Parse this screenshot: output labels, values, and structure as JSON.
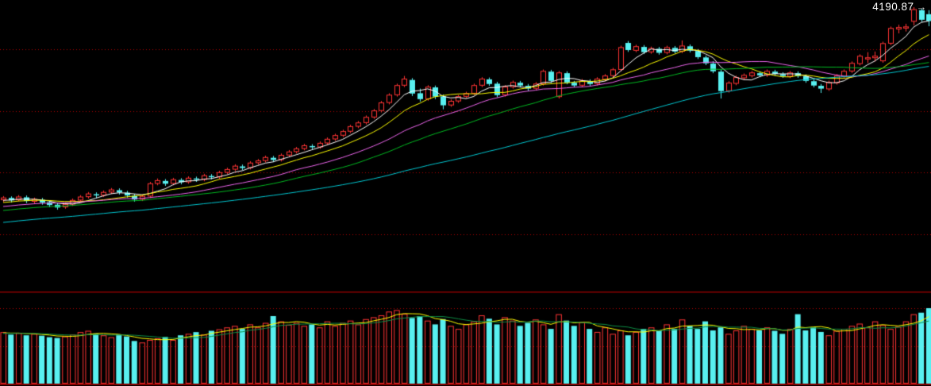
{
  "price_label": {
    "value": "4190.87",
    "arrow": "→"
  },
  "chart_data": {
    "type": "candlestick_with_volume",
    "title": "",
    "last_price": 4190.87,
    "price_pane": {
      "y_axis_range": [
        3315,
        4259
      ],
      "gridlines": [
        3500,
        3700,
        3900,
        4100
      ],
      "grid_style": "dotted"
    },
    "volume_pane": {
      "y_axis_range": [
        0,
        2400
      ],
      "gridlines": [
        1000,
        2000
      ],
      "grid_style": "dotted"
    },
    "moving_averages": {
      "price": [
        {
          "period": 5,
          "color": "#ffffff"
        },
        {
          "period": 10,
          "color": "#ffff00"
        },
        {
          "period": 20,
          "color": "#ee66ee"
        },
        {
          "period": 30,
          "color": "#00bb22"
        },
        {
          "period": 60,
          "color": "#00c8d2"
        }
      ],
      "volume": [
        {
          "period": 5,
          "color": "#ffff00"
        },
        {
          "period": 10,
          "color": "#0e8f45"
        }
      ],
      "price_warmup": {
        "start": 3460,
        "end": 3612,
        "count": 60
      },
      "volume_warmup": {
        "start": 1300,
        "end": 1350,
        "count": 10
      }
    },
    "colors": {
      "background": "#000000",
      "up": "#ff3434",
      "down": "#58f0f0",
      "grid": "#b40000",
      "border": "#8b0000",
      "label": "#ffffff"
    },
    "candles": {
      "format": [
        "open",
        "high",
        "low",
        "close",
        "volume"
      ],
      "data": [
        [
          3612,
          3624,
          3604,
          3618,
          1365
        ],
        [
          3618,
          3623,
          3603,
          3610,
          1300
        ],
        [
          3612,
          3627,
          3607,
          3621,
          1340
        ],
        [
          3620,
          3626,
          3601,
          3608,
          1280
        ],
        [
          3607,
          3619,
          3600,
          3613,
          1320
        ],
        [
          3612,
          3618,
          3596,
          3603,
          1270
        ],
        [
          3604,
          3610,
          3588,
          3595,
          1230
        ],
        [
          3596,
          3602,
          3580,
          3587,
          1210
        ],
        [
          3589,
          3603,
          3583,
          3597,
          1250
        ],
        [
          3598,
          3616,
          3592,
          3610,
          1300
        ],
        [
          3611,
          3627,
          3605,
          3621,
          1365
        ],
        [
          3622,
          3637,
          3616,
          3631,
          1400
        ],
        [
          3630,
          3636,
          3618,
          3626,
          1320
        ],
        [
          3627,
          3642,
          3621,
          3636,
          1280
        ],
        [
          3637,
          3650,
          3631,
          3644,
          1230
        ],
        [
          3643,
          3649,
          3629,
          3636,
          1300
        ],
        [
          3635,
          3641,
          3619,
          3626,
          1250
        ],
        [
          3625,
          3631,
          3606,
          3613,
          1130
        ],
        [
          3614,
          3629,
          3608,
          3623,
          1090
        ],
        [
          3624,
          3670,
          3618,
          3664,
          1160
        ],
        [
          3665,
          3681,
          3659,
          3674,
          1200
        ],
        [
          3673,
          3679,
          3657,
          3664,
          1240
        ],
        [
          3665,
          3683,
          3659,
          3677,
          1160
        ],
        [
          3676,
          3682,
          3662,
          3669,
          1280
        ],
        [
          3670,
          3688,
          3664,
          3682,
          1320
        ],
        [
          3681,
          3687,
          3670,
          3677,
          1365
        ],
        [
          3678,
          3696,
          3672,
          3690,
          1300
        ],
        [
          3689,
          3695,
          3678,
          3685,
          1400
        ],
        [
          3686,
          3706,
          3680,
          3700,
          1440
        ],
        [
          3701,
          3716,
          3695,
          3710,
          1490
        ],
        [
          3711,
          3727,
          3705,
          3721,
          1530
        ],
        [
          3720,
          3726,
          3708,
          3715,
          1450
        ],
        [
          3716,
          3737,
          3710,
          3731,
          1570
        ],
        [
          3732,
          3744,
          3726,
          3738,
          1490
        ],
        [
          3739,
          3755,
          3733,
          3749,
          1610
        ],
        [
          3748,
          3754,
          3734,
          3741,
          1790
        ],
        [
          3742,
          3762,
          3736,
          3756,
          1650
        ],
        [
          3757,
          3773,
          3751,
          3767,
          1560
        ],
        [
          3768,
          3783,
          3762,
          3777,
          1610
        ],
        [
          3778,
          3793,
          3772,
          3787,
          1530
        ],
        [
          3786,
          3792,
          3775,
          3782,
          1570
        ],
        [
          3783,
          3801,
          3777,
          3795,
          1490
        ],
        [
          3796,
          3814,
          3790,
          3808,
          1650
        ],
        [
          3809,
          3826,
          3803,
          3820,
          1530
        ],
        [
          3821,
          3839,
          3815,
          3833,
          1610
        ],
        [
          3834,
          3855,
          3828,
          3849,
          1670
        ],
        [
          3850,
          3867,
          3844,
          3861,
          1570
        ],
        [
          3862,
          3885,
          3856,
          3879,
          1710
        ],
        [
          3880,
          3906,
          3874,
          3900,
          1760
        ],
        [
          3901,
          3932,
          3895,
          3926,
          1810
        ],
        [
          3927,
          3957,
          3921,
          3951,
          1910
        ],
        [
          3952,
          3988,
          3946,
          3982,
          1950
        ],
        [
          3983,
          4013,
          3977,
          4003,
          1850
        ],
        [
          4000,
          4006,
          3948,
          3956,
          1740
        ],
        [
          3957,
          3972,
          3930,
          3938,
          1790
        ],
        [
          3939,
          3983,
          3933,
          3977,
          1670
        ],
        [
          3976,
          3982,
          3938,
          3946,
          1570
        ],
        [
          3947,
          3953,
          3905,
          3918,
          1710
        ],
        [
          3919,
          3937,
          3913,
          3931,
          1530
        ],
        [
          3932,
          3952,
          3926,
          3946,
          1450
        ],
        [
          3947,
          3962,
          3941,
          3956,
          1570
        ],
        [
          3957,
          3988,
          3951,
          3982,
          1650
        ],
        [
          3983,
          4009,
          3977,
          4003,
          1810
        ],
        [
          4002,
          4008,
          3981,
          3987,
          1720
        ],
        [
          3988,
          3994,
          3944,
          3951,
          1570
        ],
        [
          3952,
          3983,
          3946,
          3977,
          1760
        ],
        [
          3978,
          3998,
          3972,
          3992,
          1670
        ],
        [
          3991,
          3997,
          3976,
          3982,
          1530
        ],
        [
          3981,
          3987,
          3965,
          3972,
          1610
        ],
        [
          3973,
          3993,
          3967,
          3987,
          1700
        ],
        [
          3988,
          4034,
          3982,
          4028,
          1570
        ],
        [
          4027,
          4033,
          3990,
          3997,
          1450
        ],
        [
          3946,
          4029,
          3940,
          4023,
          1840
        ],
        [
          4022,
          4028,
          3986,
          3992,
          1670
        ],
        [
          3991,
          3997,
          3976,
          3982,
          1530
        ],
        [
          3983,
          4003,
          3977,
          3997,
          1630
        ],
        [
          3996,
          4002,
          3981,
          3987,
          1450
        ],
        [
          3988,
          4009,
          3982,
          4003,
          1370
        ],
        [
          4002,
          4019,
          3996,
          4013,
          1490
        ],
        [
          4014,
          4039,
          4008,
          4033,
          1320
        ],
        [
          4034,
          4111,
          4028,
          4105,
          1410
        ],
        [
          4120,
          4126,
          4091,
          4097,
          1280
        ],
        [
          4096,
          4114,
          4090,
          4108,
          1370
        ],
        [
          4107,
          4113,
          4084,
          4090,
          1450
        ],
        [
          4091,
          4108,
          4085,
          4102,
          1490
        ],
        [
          4101,
          4107,
          4082,
          4088,
          1410
        ],
        [
          4089,
          4111,
          4083,
          4105,
          1570
        ],
        [
          4104,
          4110,
          4086,
          4092,
          1450
        ],
        [
          4093,
          4128,
          4087,
          4110,
          1700
        ],
        [
          4109,
          4115,
          4089,
          4095,
          1530
        ],
        [
          4094,
          4100,
          4068,
          4074,
          1450
        ],
        [
          4073,
          4079,
          4048,
          4054,
          1650
        ],
        [
          4053,
          4061,
          4022,
          4028,
          1410
        ],
        [
          4027,
          4033,
          3940,
          3964,
          1490
        ],
        [
          3965,
          3996,
          3959,
          3990,
          1320
        ],
        [
          3989,
          4014,
          3983,
          4008,
          1410
        ],
        [
          4007,
          4021,
          4001,
          4015,
          1530
        ],
        [
          4014,
          4029,
          4008,
          4023,
          1450
        ],
        [
          4022,
          4028,
          4009,
          4015,
          1410
        ],
        [
          4016,
          4034,
          4010,
          4028,
          1490
        ],
        [
          4027,
          4033,
          4014,
          4020,
          1400
        ],
        [
          4019,
          4025,
          4007,
          4013,
          1320
        ],
        [
          4012,
          4029,
          4006,
          4023,
          1450
        ],
        [
          4022,
          4028,
          4007,
          4013,
          1840
        ],
        [
          4012,
          4018,
          3991,
          3997,
          1410
        ],
        [
          3996,
          4002,
          3976,
          3982,
          1490
        ],
        [
          3981,
          3987,
          3958,
          3972,
          1370
        ],
        [
          3971,
          3998,
          3965,
          3992,
          1280
        ],
        [
          3991,
          4019,
          3985,
          4013,
          1400
        ],
        [
          4012,
          4034,
          4006,
          4028,
          1450
        ],
        [
          4029,
          4060,
          4023,
          4054,
          1530
        ],
        [
          4053,
          4083,
          4047,
          4077,
          1590
        ],
        [
          4068,
          4090,
          4055,
          4072,
          1490
        ],
        [
          4072,
          4092,
          4060,
          4077,
          1650
        ],
        [
          4062,
          4124,
          4056,
          4118,
          1550
        ],
        [
          4119,
          4173,
          4113,
          4167,
          1450
        ],
        [
          4165,
          4179,
          4151,
          4170,
          1510
        ],
        [
          4168,
          4182,
          4157,
          4172,
          1650
        ],
        [
          4190,
          4236,
          4177,
          4228,
          1840
        ],
        [
          4226,
          4231,
          4188,
          4195,
          1880
        ],
        [
          4213,
          4226,
          4174,
          4190.87,
          2000
        ]
      ]
    }
  }
}
